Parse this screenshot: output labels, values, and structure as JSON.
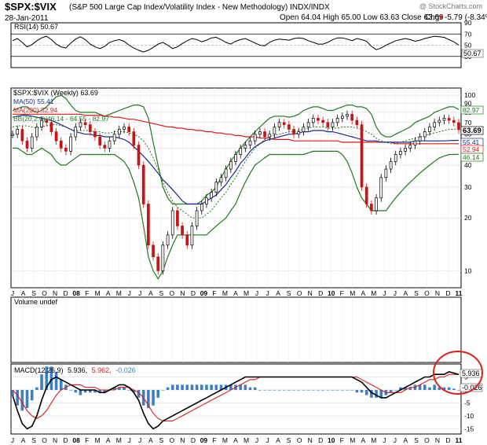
{
  "header": {
    "symbol": "$SPX:$VIX",
    "description": "(S&P 500 Large Cap Index/Volatility Index - New Methodology) INDX/INDX",
    "watermark": "@ StockCharts.com",
    "date": "28-Jan-2011",
    "ohlc": "Open 64.04 High 65.00 Low 63.63 Close 63.69",
    "chg_label": "Chg",
    "chg_value": "-5.79 (-8.34%)",
    "chg_arrow": "▼"
  },
  "colors": {
    "price": "#000000",
    "ma50": "#1a2b8c",
    "ma200": "#e01a1a",
    "bb": "#1f7a1f",
    "volume": "#3b7fc4",
    "circle": "#e0201c",
    "grid": "#d8d8d8"
  },
  "chart_data": [
    {
      "type": "line",
      "title": "RSI(14) 50.67",
      "legend": "RSI(14) 50.67",
      "yticks": [
        "90",
        "70",
        "50",
        "30"
      ],
      "ylim": [
        10,
        90
      ],
      "last_value": "50.67",
      "reference_lines": [
        30,
        50,
        70
      ],
      "series": [
        {
          "name": "RSI(14)",
          "values": [
            58,
            62,
            55,
            47,
            51,
            58,
            63,
            66,
            60,
            52,
            47,
            45,
            54,
            61,
            65,
            60,
            52,
            47,
            44,
            48,
            55,
            58,
            60,
            57,
            50,
            45,
            41,
            38,
            41,
            46,
            52,
            55,
            50,
            44,
            47,
            53,
            58,
            62,
            60,
            56,
            59,
            63,
            64,
            60,
            55,
            52,
            57,
            60,
            62,
            58,
            54,
            50,
            49,
            55,
            59,
            61,
            60,
            59,
            62,
            63,
            62,
            58,
            55,
            52,
            52,
            55,
            60,
            63,
            63,
            61,
            58,
            62,
            60,
            57,
            48,
            42,
            45,
            50,
            54,
            58,
            60,
            62,
            60,
            57,
            59,
            62,
            64,
            66,
            65,
            64,
            60,
            56,
            50
          ]
        }
      ]
    },
    {
      "type": "line",
      "title": "$SPX:$VIX (Weekly) 63.69",
      "legend": "$SPX:$VIX (Weekly) 63.69",
      "scale": "log",
      "ylim": [
        8,
        110
      ],
      "yticks": [
        "100",
        "90",
        "80",
        "70",
        "60",
        "50",
        "40",
        "30",
        "20",
        "10"
      ],
      "x_labels": [
        "J",
        "A",
        "S",
        "O",
        "N",
        "D",
        "08",
        "F",
        "M",
        "A",
        "M",
        "J",
        "J",
        "A",
        "S",
        "O",
        "N",
        "D",
        "09",
        "F",
        "M",
        "A",
        "M",
        "J",
        "J",
        "A",
        "S",
        "O",
        "N",
        "D",
        "10",
        "F",
        "M",
        "A",
        "M",
        "J",
        "J",
        "A",
        "S",
        "O",
        "N",
        "D",
        "11"
      ],
      "last_values": {
        "bb_upper": "82.97",
        "price": "63.69",
        "ma50": "55.41",
        "ma200": "52.94",
        "bb_lower": "46.14"
      },
      "series": [
        {
          "name": "$SPX:$VIX",
          "legend": "",
          "values": [
            60,
            64,
            55,
            50,
            58,
            66,
            72,
            70,
            62,
            55,
            50,
            48,
            58,
            66,
            70,
            68,
            62,
            58,
            52,
            50,
            55,
            60,
            64,
            66,
            62,
            52,
            40,
            24,
            14,
            12,
            10,
            14,
            16,
            22,
            18,
            16,
            14,
            18,
            22,
            24,
            26,
            28,
            32,
            34,
            38,
            42,
            46,
            50,
            52,
            55,
            60,
            62,
            58,
            60,
            66,
            70,
            68,
            64,
            60,
            62,
            66,
            70,
            74,
            72,
            70,
            66,
            70,
            74,
            76,
            78,
            72,
            68,
            30,
            24,
            22,
            26,
            34,
            38,
            42,
            46,
            48,
            50,
            52,
            55,
            58,
            62,
            66,
            70,
            72,
            74,
            72,
            70,
            63.69
          ]
        },
        {
          "name": "MA(50)",
          "legend": "MA(50) 55.41",
          "values": [
            75,
            76,
            77,
            77,
            76,
            75,
            74,
            73,
            72,
            70,
            68,
            66,
            64,
            62,
            61,
            60,
            60,
            59,
            59,
            58,
            58,
            58,
            57,
            56,
            54,
            51,
            48,
            45,
            42,
            39,
            36,
            33,
            31,
            29,
            27,
            25,
            24,
            24,
            24,
            24,
            25,
            26,
            27,
            29,
            31,
            34,
            37,
            41,
            44,
            48,
            51,
            53,
            55,
            56,
            57,
            58,
            59,
            60,
            60,
            61,
            62,
            62,
            63,
            63,
            63,
            62,
            62,
            61,
            60,
            59,
            58,
            57,
            56,
            55,
            55,
            55,
            54,
            54,
            54,
            54,
            54,
            54,
            54,
            55,
            55,
            55,
            55,
            55,
            55,
            55,
            55.2,
            55.3,
            55.41
          ]
        },
        {
          "name": "MA(200)",
          "legend": "MA(200) 52.94",
          "values": [
            78,
            78,
            78,
            78,
            78,
            78,
            78,
            78,
            78,
            78,
            78,
            78,
            78,
            78,
            78,
            77,
            77,
            77,
            77,
            76,
            76,
            75,
            75,
            74,
            73,
            73,
            72,
            71,
            70,
            69,
            68,
            67,
            66,
            66,
            65,
            65,
            64,
            64,
            63,
            63,
            62,
            62,
            61,
            61,
            60,
            60,
            59,
            59,
            58,
            58,
            58,
            57,
            57,
            57,
            56,
            56,
            56,
            56,
            55,
            55,
            55,
            55,
            55,
            55,
            55,
            55,
            55,
            55,
            54,
            54,
            54,
            54,
            54,
            54,
            54,
            54,
            54,
            54,
            54,
            53,
            53,
            53,
            53,
            53,
            53,
            53,
            53,
            53,
            53,
            53,
            53,
            53,
            52.94
          ]
        },
        {
          "name": "BB upper",
          "legend": "BB(20,2.0) 46.14 - 64.55 - 82.97",
          "values": [
            82,
            84,
            86,
            86,
            82,
            80,
            82,
            86,
            92,
            98,
            100,
            96,
            88,
            82,
            80,
            80,
            80,
            80,
            78,
            76,
            78,
            80,
            82,
            84,
            86,
            88,
            88,
            86,
            74,
            54,
            40,
            30,
            26,
            24,
            24,
            24,
            24,
            24,
            24,
            25,
            27,
            28,
            30,
            34,
            38,
            42,
            46,
            50,
            54,
            58,
            62,
            66,
            70,
            74,
            76,
            76,
            76,
            75,
            76,
            78,
            82,
            84,
            86,
            86,
            84,
            82,
            82,
            84,
            86,
            88,
            88,
            86,
            86,
            84,
            78,
            66,
            60,
            58,
            58,
            60,
            62,
            64,
            66,
            70,
            72,
            74,
            76,
            80,
            82,
            84,
            86,
            86,
            82.97
          ]
        },
        {
          "name": "BB mid",
          "legend": "",
          "values": [
            66,
            67,
            67,
            67,
            66,
            65,
            66,
            67,
            68,
            68,
            67,
            66,
            64,
            63,
            63,
            63,
            63,
            62,
            62,
            61,
            61,
            62,
            62,
            62,
            61,
            60,
            58,
            55,
            50,
            44,
            38,
            32,
            28,
            25,
            23,
            22,
            21,
            20,
            20,
            20,
            21,
            22,
            24,
            26,
            28,
            31,
            34,
            38,
            42,
            46,
            50,
            53,
            56,
            58,
            59,
            60,
            61,
            62,
            62,
            63,
            64,
            65,
            66,
            66,
            66,
            65,
            65,
            65,
            66,
            66,
            66,
            65,
            64,
            62,
            60,
            57,
            55,
            54,
            53,
            53,
            54,
            55,
            56,
            57,
            58,
            59,
            60,
            61,
            62,
            63,
            64,
            64,
            64.55
          ]
        },
        {
          "name": "BB lower",
          "legend": "",
          "values": [
            50,
            50,
            48,
            46,
            46,
            48,
            50,
            48,
            46,
            42,
            40,
            40,
            42,
            44,
            46,
            46,
            46,
            46,
            46,
            46,
            46,
            46,
            44,
            42,
            38,
            32,
            26,
            18,
            12,
            10,
            9,
            10,
            12,
            14,
            16,
            16,
            16,
            16,
            16,
            16,
            16,
            17,
            18,
            19,
            20,
            22,
            24,
            28,
            32,
            36,
            40,
            42,
            44,
            46,
            46,
            46,
            46,
            46,
            46,
            46,
            46,
            47,
            48,
            48,
            48,
            48,
            48,
            48,
            46,
            42,
            36,
            30,
            26,
            24,
            22,
            22,
            22,
            22,
            24,
            26,
            28,
            30,
            32,
            34,
            36,
            38,
            40,
            42,
            44,
            45,
            46,
            46,
            46.14
          ]
        }
      ]
    },
    {
      "type": "bar",
      "title": "Volume undef",
      "legend": "Volume undef",
      "values": []
    },
    {
      "type": "line",
      "title": "MACD(12,26,9) 5.936, 5.962, -0.026",
      "legend_name": "MACD(12,26,9)",
      "legend_macd": "5.936,",
      "legend_signal": "5.962,",
      "legend_hist": "-0.026",
      "ylim": [
        -17,
        10
      ],
      "yticks": [
        "5",
        "0",
        "-5",
        "-10",
        "-15"
      ],
      "x_labels": [
        "J",
        "A",
        "S",
        "O",
        "N",
        "D",
        "08",
        "F",
        "M",
        "A",
        "M",
        "J",
        "J",
        "A",
        "S",
        "O",
        "N",
        "D",
        "09",
        "F",
        "M",
        "A",
        "M",
        "J",
        "J",
        "A",
        "S",
        "O",
        "N",
        "D",
        "10",
        "F",
        "M",
        "A",
        "M",
        "J",
        "J",
        "A",
        "S",
        "O",
        "N",
        "D",
        "11"
      ],
      "last_values": {
        "macd": "5.936",
        "hist": "-0.026"
      },
      "series": [
        {
          "name": "MACD",
          "values": [
            -2,
            -8,
            -13,
            -15,
            -14,
            -10,
            -4,
            1,
            4,
            5,
            4,
            3,
            2,
            1,
            0,
            0,
            0,
            0,
            -1,
            -1,
            0,
            1,
            2,
            2,
            1,
            -1,
            -4,
            -9,
            -13,
            -15,
            -14,
            -12,
            -11,
            -10,
            -9,
            -8,
            -7,
            -6,
            -5,
            -4,
            -3,
            -2,
            -1,
            0,
            1,
            2,
            3,
            4,
            5,
            5,
            5,
            5,
            5,
            5,
            5,
            5,
            5,
            5,
            5,
            5,
            5,
            5,
            5,
            5,
            5,
            5,
            5,
            5,
            5,
            5,
            5,
            4,
            3,
            1,
            -1,
            -2,
            -3,
            -3,
            -2,
            -1,
            0,
            1,
            2,
            3,
            4,
            5,
            5,
            6,
            6,
            6,
            7,
            6.5,
            5.936
          ]
        },
        {
          "name": "Signal",
          "values": [
            0,
            -2,
            -5,
            -8,
            -10,
            -11,
            -10,
            -8,
            -5,
            -2,
            0,
            1,
            2,
            2,
            2,
            1,
            1,
            1,
            0,
            0,
            0,
            0,
            1,
            1,
            1,
            0,
            -1,
            -3,
            -6,
            -9,
            -11,
            -12,
            -12,
            -12,
            -11,
            -10,
            -9,
            -8,
            -7,
            -6,
            -5,
            -4,
            -3,
            -2,
            -1,
            0,
            1,
            2,
            3,
            4,
            4,
            5,
            5,
            5,
            5,
            5,
            5,
            5,
            5,
            5,
            5,
            5,
            5,
            5,
            5,
            5,
            5,
            5,
            5,
            5,
            5,
            5,
            4,
            3,
            2,
            1,
            0,
            -1,
            -1,
            -1,
            -1,
            0,
            1,
            1,
            2,
            3,
            4,
            4,
            5,
            5,
            6,
            6,
            5.962
          ]
        }
      ]
    }
  ]
}
